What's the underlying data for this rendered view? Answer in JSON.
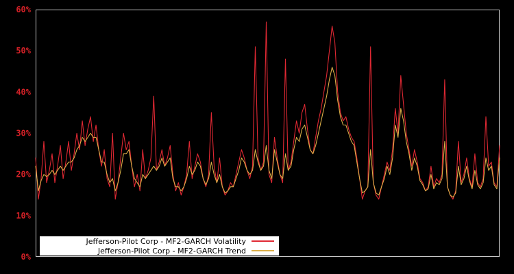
{
  "window": {
    "background": "#000000"
  },
  "chart_data": {
    "type": "line",
    "title": "",
    "unit": "%",
    "ylim": [
      0,
      60
    ],
    "ytick_values": [
      0,
      10,
      20,
      30,
      40,
      50,
      60
    ],
    "ytick_labels": [
      "0%",
      "10%",
      "20%",
      "30%",
      "40%",
      "50%",
      "60%"
    ],
    "x_tick_labels_visible": false,
    "grid": false,
    "background": "#000000",
    "plot_border_color": "#c8c8c8",
    "tick_label_color": "#d42127",
    "legend": {
      "position": "bottom-left",
      "background": "#ffffff",
      "text_color": "#000000"
    },
    "series": [
      {
        "name": "Jefferson-Pilot Corp - MF2-GARCH Volatility",
        "color": "#e02833",
        "values": [
          24,
          14,
          19,
          28,
          18,
          21,
          25,
          18,
          22,
          27,
          19,
          23,
          28,
          21,
          25,
          30,
          26,
          33,
          27,
          31,
          34,
          28,
          32,
          26,
          22,
          26,
          19,
          17,
          30,
          14,
          18,
          24,
          30,
          26,
          28,
          22,
          17,
          20,
          16,
          26,
          19,
          21,
          24,
          39,
          21,
          23,
          26,
          22,
          24,
          27,
          20,
          16,
          18,
          15,
          17,
          20,
          28,
          19,
          22,
          25,
          23,
          19,
          17,
          20,
          35,
          22,
          18,
          24,
          17,
          15,
          16,
          18,
          17,
          20,
          23,
          26,
          24,
          21,
          19,
          22,
          51,
          24,
          21,
          23,
          57,
          20,
          18,
          29,
          24,
          20,
          18,
          48,
          21,
          23,
          28,
          33,
          30,
          35,
          37,
          31,
          26,
          25,
          29,
          33,
          36,
          40,
          44,
          50,
          56,
          52,
          40,
          35,
          33,
          34,
          31,
          29,
          28,
          24,
          19,
          14,
          16,
          17,
          51,
          18,
          15,
          14,
          17,
          20,
          23,
          21,
          26,
          36,
          30,
          44,
          37,
          30,
          26,
          22,
          26,
          23,
          19,
          18,
          16,
          17,
          22,
          17,
          19,
          18,
          20,
          43,
          17,
          15,
          14,
          16,
          28,
          18,
          20,
          24,
          19,
          17,
          25,
          18,
          17,
          19,
          34,
          22,
          23,
          18,
          17,
          27
        ]
      },
      {
        "name": "Jefferson-Pilot Corp - MF2-GARCH Trend",
        "color": "#dbae47",
        "values": [
          22,
          16,
          18.5,
          20,
          19.5,
          20,
          21,
          20,
          21,
          22,
          21,
          22,
          23,
          23,
          24,
          26,
          27,
          29,
          28,
          29,
          30,
          29,
          29,
          26,
          23,
          23,
          20,
          18,
          19,
          16,
          18,
          21,
          25,
          25,
          26,
          22,
          19,
          18,
          17,
          20,
          19,
          20,
          21,
          22,
          21,
          22,
          24,
          22,
          23,
          24,
          19,
          17,
          17,
          16,
          17,
          19,
          22,
          20,
          21,
          23,
          22,
          19,
          17.5,
          19,
          23,
          20,
          18,
          20,
          17,
          15.5,
          16,
          17,
          17,
          19,
          21,
          24,
          23,
          21,
          20,
          21,
          26,
          23,
          21,
          22,
          27,
          21,
          19,
          26,
          23,
          20,
          19,
          25,
          21,
          22,
          26,
          29,
          28,
          31,
          32,
          29,
          26,
          25,
          27,
          30,
          33,
          36,
          39,
          43,
          46,
          44,
          38,
          34,
          32,
          32,
          30,
          28,
          27,
          23,
          19,
          15.5,
          16,
          17,
          26,
          18,
          15.5,
          15,
          17,
          19,
          22,
          20,
          24,
          32,
          29,
          36,
          33,
          28,
          25,
          21,
          24,
          22,
          18.5,
          17.5,
          16,
          16.5,
          20,
          16.5,
          18,
          17.5,
          19,
          28,
          17,
          15,
          14.5,
          15.5,
          22,
          17.5,
          19,
          22,
          18.5,
          16.5,
          21,
          17.5,
          16.5,
          18,
          24,
          21,
          22,
          17.5,
          16.5,
          24
        ]
      }
    ]
  }
}
